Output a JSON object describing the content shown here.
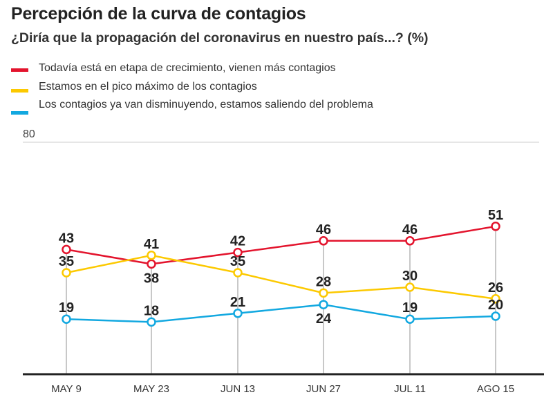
{
  "header": {
    "title": "Percepción de la curva de contagios",
    "subtitle": "¿Diría que la propagación del coronavirus en nuestro país...? (%)"
  },
  "chart_data": {
    "type": "line",
    "title": "Percepción de la curva de contagios",
    "subtitle": "¿Diría que la propagación del coronavirus en nuestro país...? (%)",
    "xlabel": "",
    "ylabel": "",
    "categories": [
      "MAY 9",
      "MAY 23",
      "JUN 13",
      "JUN 27",
      "JUL 11",
      "AGO 15"
    ],
    "ylim": [
      0,
      80
    ],
    "yticks": [
      80
    ],
    "ytick_labels": [
      "80"
    ],
    "grid": true,
    "legend_position": "top-left",
    "series": [
      {
        "name": "Todavía está en etapa de crecimiento, vienen más contagios",
        "color": "#e3142d",
        "values": [
          43,
          38,
          42,
          46,
          46,
          51
        ],
        "label_positions": [
          "above",
          "below",
          "above",
          "above",
          "above",
          "above"
        ]
      },
      {
        "name": "Estamos en el pico máximo de los contagios",
        "color": "#fcc900",
        "values": [
          35,
          41,
          35,
          28,
          30,
          26
        ],
        "label_positions": [
          "above",
          "above",
          "above",
          "above",
          "above",
          "above"
        ]
      },
      {
        "name": "Los contagios ya van disminuyendo, estamos saliendo del problema",
        "color": "#12a8e0",
        "values": [
          19,
          18,
          21,
          24,
          19,
          20
        ],
        "label_positions": [
          "above",
          "above",
          "above",
          "below",
          "above",
          "above"
        ]
      }
    ]
  }
}
